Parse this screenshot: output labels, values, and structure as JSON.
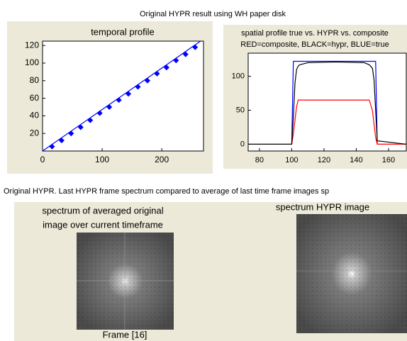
{
  "caption_top": "Original HYPR result using WH paper disk",
  "caption_bottom": "Original HYPR. Last HYPR frame spectrum compared to average of last time frame images sp",
  "left_image": {
    "title": [
      "spectrum of averaged original",
      "image over current timeframe"
    ],
    "footer": "Frame [16]"
  },
  "right_image": {
    "title": "spectrum HYPR image"
  },
  "chart_data": [
    {
      "type": "line",
      "title": [
        "temporal profile"
      ],
      "xlim": [
        0,
        270
      ],
      "ylim": [
        0,
        125
      ],
      "xticks": [
        0,
        100,
        200
      ],
      "yticks": [
        20,
        40,
        60,
        80,
        100,
        120
      ],
      "series": [
        {
          "color": "#0000ff",
          "marker": "none",
          "line": true,
          "x": [
            0,
            265
          ],
          "values": [
            0,
            125
          ]
        },
        {
          "color": "#0000ff",
          "marker": "diamond",
          "line": false,
          "x": [
            16,
            32,
            48,
            64,
            80,
            96,
            112,
            128,
            144,
            160,
            176,
            192,
            208,
            224,
            240,
            256
          ],
          "values": [
            5,
            12,
            20,
            27,
            35,
            43,
            50,
            58,
            65,
            73,
            80,
            88,
            95,
            103,
            110,
            118
          ]
        }
      ]
    },
    {
      "type": "line",
      "title": [
        "spatial profile true vs. HYPR vs. composite",
        "RED=composite, BLACK=hypr, BLUE=true"
      ],
      "xlim": [
        73,
        171
      ],
      "ylim": [
        -10,
        134
      ],
      "xticks": [
        80,
        100,
        120,
        140,
        160
      ],
      "yticks": [
        0,
        50,
        100
      ],
      "series": [
        {
          "color": "#0000ff",
          "marker": "none",
          "line": true,
          "x": [
            73,
            100,
            101,
            102,
            103,
            104,
            105,
            110,
            127,
            145,
            148,
            150,
            151,
            152,
            153,
            171
          ],
          "values": [
            0,
            0,
            122,
            122,
            122,
            122,
            122,
            122,
            122,
            122,
            122,
            122,
            122,
            122,
            0,
            0
          ]
        },
        {
          "color": "#ff0000",
          "marker": "none",
          "line": true,
          "x": [
            73,
            100,
            101,
            102,
            103,
            104,
            105,
            110,
            127,
            145,
            148,
            150,
            151,
            152,
            153,
            171
          ],
          "values": [
            0,
            0,
            15,
            35,
            55,
            65,
            65,
            65,
            65,
            65,
            65,
            50,
            30,
            10,
            0,
            0
          ]
        },
        {
          "color": "#000000",
          "marker": "none",
          "line": true,
          "x": [
            73,
            100,
            101,
            102,
            103,
            104,
            105,
            110,
            127,
            145,
            148,
            150,
            151,
            152,
            153,
            171
          ],
          "values": [
            0,
            0,
            40,
            90,
            110,
            115,
            117,
            120,
            121,
            120,
            117,
            112,
            95,
            50,
            5,
            0
          ]
        }
      ]
    }
  ]
}
